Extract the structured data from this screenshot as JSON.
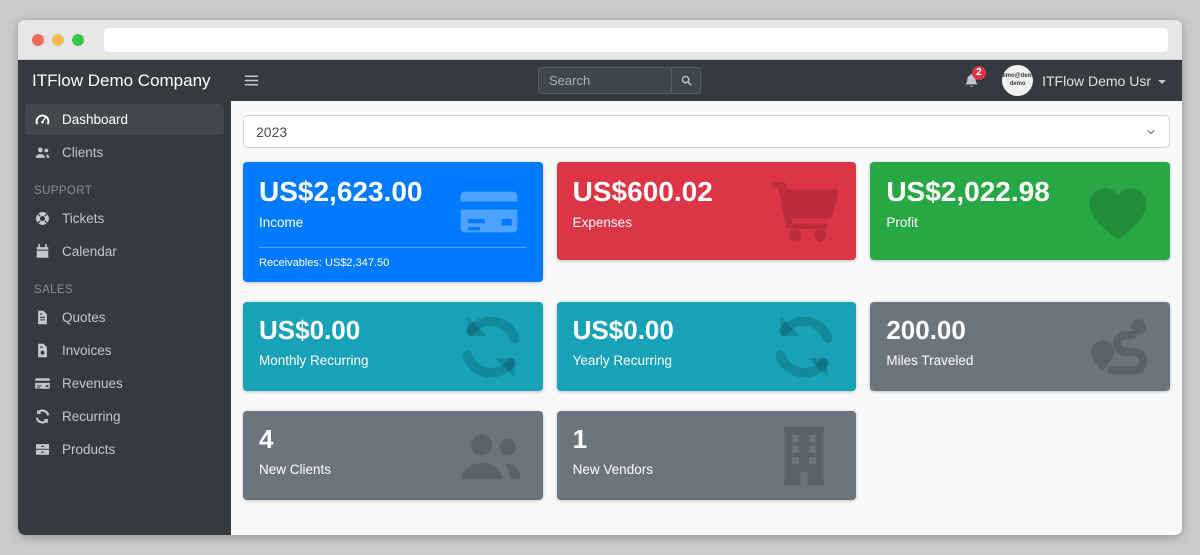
{
  "navbar": {
    "menu_toggle_icon": "bars",
    "search": {
      "placeholder": "Search",
      "icon": "search"
    },
    "notifications": {
      "icon": "bell",
      "badge": "2"
    },
    "user": {
      "name": "ITFlow Demo Usr",
      "avatar_text": "demo@demo demo"
    }
  },
  "sidebar": {
    "brand": "ITFlow Demo Company",
    "sections": [
      {
        "header": null,
        "items": [
          {
            "label": "Dashboard",
            "icon": "tachometer",
            "active": true
          },
          {
            "label": "Clients",
            "icon": "users",
            "active": false
          }
        ]
      },
      {
        "header": "SUPPORT",
        "items": [
          {
            "label": "Tickets",
            "icon": "life-ring",
            "active": false
          },
          {
            "label": "Calendar",
            "icon": "calendar",
            "active": false
          }
        ]
      },
      {
        "header": "SALES",
        "items": [
          {
            "label": "Quotes",
            "icon": "file-lines",
            "active": false
          },
          {
            "label": "Invoices",
            "icon": "file-invoice-dollar",
            "active": false
          },
          {
            "label": "Revenues",
            "icon": "credit-card",
            "active": false
          },
          {
            "label": "Recurring",
            "icon": "sync",
            "active": false
          },
          {
            "label": "Products",
            "icon": "boxes",
            "active": false
          }
        ]
      }
    ]
  },
  "main": {
    "year_select": {
      "value": "2023"
    },
    "card_rows": [
      [
        {
          "value": "US$2,623.00",
          "label": "Income",
          "icon": "credit-card",
          "color": "#007bff",
          "icon_variant": "light",
          "footer": "Receivables: US$2,347.50"
        },
        {
          "value": "US$600.02",
          "label": "Expenses",
          "icon": "shopping-cart",
          "color": "#dc3545"
        },
        {
          "value": "US$2,022.98",
          "label": "Profit",
          "icon": "heart",
          "color": "#28a745"
        }
      ],
      [
        {
          "value": "US$0.00",
          "label": "Monthly Recurring",
          "icon": "sync",
          "color": "#17a2b8"
        },
        {
          "value": "US$0.00",
          "label": "Yearly Recurring",
          "icon": "sync",
          "color": "#17a2b8"
        },
        {
          "value": "200.00",
          "label": "Miles Traveled",
          "icon": "route",
          "color": "#6c757d"
        }
      ],
      [
        {
          "value": "4",
          "label": "New Clients",
          "icon": "users",
          "color": "#6c757d"
        },
        {
          "value": "1",
          "label": "New Vendors",
          "icon": "building",
          "color": "#6c757d"
        }
      ]
    ]
  },
  "colors": {
    "navbar_bg": "#343a40",
    "primary": "#007bff",
    "danger": "#dc3545",
    "success": "#28a745",
    "info": "#17a2b8",
    "secondary": "#6c757d",
    "badge": "#dc3545",
    "content_bg": "#f8f9fa"
  }
}
